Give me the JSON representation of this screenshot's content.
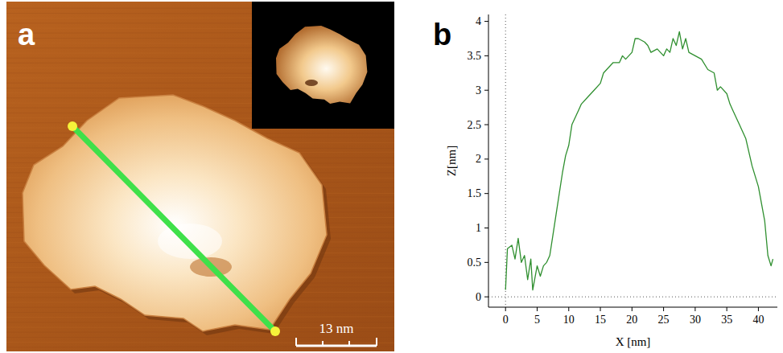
{
  "chart_data": {
    "type": "line",
    "panel_label": "b",
    "x_label": "X [nm]",
    "y_label": "Z[nm]",
    "color": "#2f8f2f",
    "x": [
      0,
      0.3,
      1,
      1.5,
      2,
      2.5,
      3,
      3.5,
      4,
      4.3,
      5,
      5.5,
      6,
      6.5,
      7,
      7.5,
      8,
      8.5,
      9,
      9.5,
      10,
      10.5,
      11,
      11.5,
      12,
      13,
      14,
      15,
      15.5,
      16,
      17,
      18,
      18.5,
      19,
      20,
      20.5,
      21,
      22,
      22.5,
      23,
      24,
      25,
      25.5,
      26,
      26.5,
      27,
      27.5,
      28,
      28.5,
      29,
      30,
      31,
      32,
      33,
      33.5,
      34,
      35,
      35.5,
      36,
      37,
      38,
      39,
      40,
      41,
      41.5,
      42,
      42.3
    ],
    "values": [
      0.1,
      0.7,
      0.75,
      0.55,
      0.85,
      0.5,
      0.6,
      0.25,
      0.55,
      0.1,
      0.45,
      0.3,
      0.45,
      0.5,
      0.6,
      0.9,
      1.2,
      1.5,
      1.8,
      2.05,
      2.2,
      2.5,
      2.6,
      2.7,
      2.8,
      2.9,
      3.0,
      3.1,
      3.25,
      3.3,
      3.4,
      3.4,
      3.5,
      3.45,
      3.55,
      3.75,
      3.75,
      3.7,
      3.65,
      3.55,
      3.6,
      3.5,
      3.6,
      3.55,
      3.75,
      3.65,
      3.85,
      3.6,
      3.75,
      3.55,
      3.5,
      3.45,
      3.3,
      3.25,
      3.0,
      3.05,
      2.95,
      2.8,
      2.7,
      2.5,
      2.3,
      1.9,
      1.6,
      1.1,
      0.6,
      0.45,
      0.55
    ],
    "xlim": [
      -2.7,
      43
    ],
    "ylim": [
      -0.15,
      4.1
    ],
    "xticks": [
      0,
      5,
      10,
      15,
      20,
      25,
      30,
      35,
      40
    ],
    "yticks": [
      0,
      0.5,
      1,
      1.5,
      2,
      2.5,
      3,
      3.5,
      4
    ],
    "grid": false
  },
  "image_panel": {
    "panel_label": "a",
    "scale_bar_label": "13 nm"
  }
}
